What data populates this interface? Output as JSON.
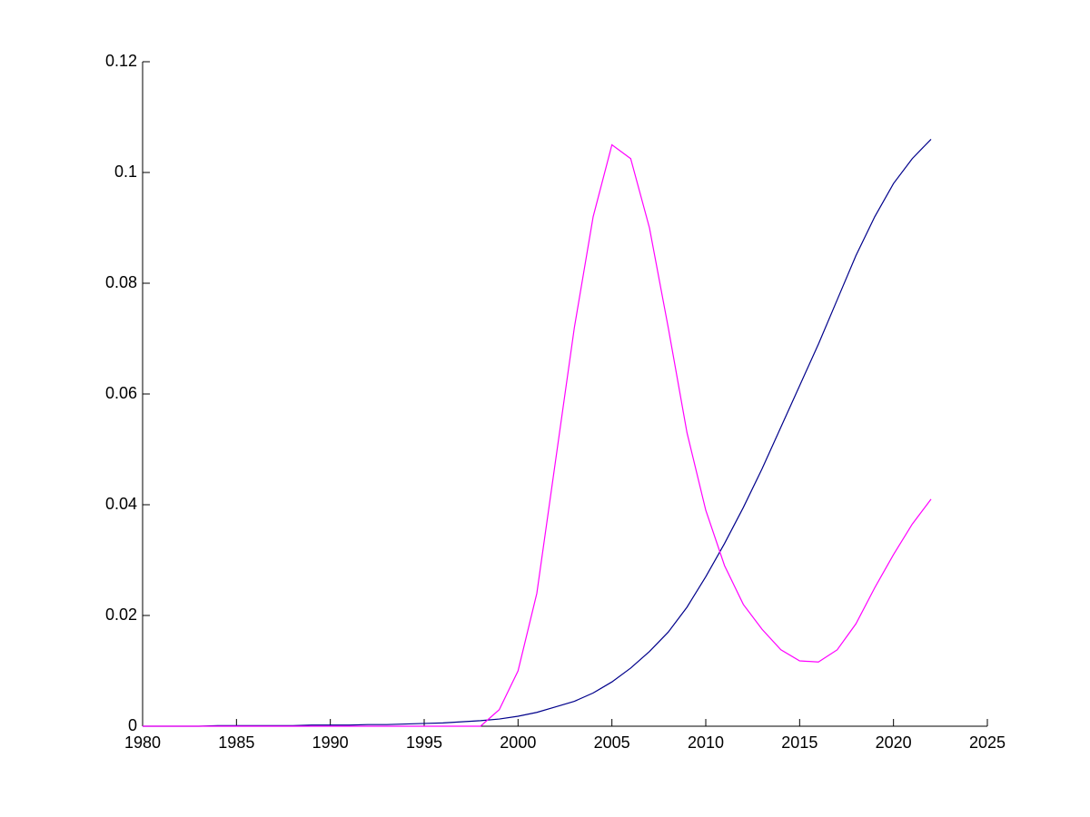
{
  "chart_data": {
    "type": "line",
    "x": [
      1980,
      1981,
      1982,
      1983,
      1984,
      1985,
      1986,
      1987,
      1988,
      1989,
      1990,
      1991,
      1992,
      1993,
      1994,
      1995,
      1996,
      1997,
      1998,
      1999,
      2000,
      2001,
      2002,
      2003,
      2004,
      2005,
      2006,
      2007,
      2008,
      2009,
      2010,
      2011,
      2012,
      2013,
      2014,
      2015,
      2016,
      2017,
      2018,
      2019,
      2020,
      2021,
      2022
    ],
    "series": [
      {
        "color": "#00008b",
        "values": [
          0,
          0,
          0,
          0,
          0.0001,
          0.0001,
          0.0001,
          0.0001,
          0.0001,
          0.0002,
          0.0002,
          0.0002,
          0.0003,
          0.0003,
          0.0004,
          0.0005,
          0.0006,
          0.0008,
          0.001,
          0.0013,
          0.0018,
          0.0025,
          0.0035,
          0.0045,
          0.006,
          0.008,
          0.0105,
          0.0135,
          0.017,
          0.0215,
          0.027,
          0.033,
          0.0395,
          0.0465,
          0.054,
          0.0615,
          0.069,
          0.077,
          0.085,
          0.092,
          0.098,
          0.1025,
          0.106
        ]
      },
      {
        "color": "#ff00ff",
        "values": [
          0,
          0,
          0,
          0,
          0,
          0,
          0,
          0,
          0,
          0,
          0,
          0,
          0,
          0,
          0,
          0,
          0,
          0,
          0,
          0.003,
          0.01,
          0.024,
          0.048,
          0.072,
          0.092,
          0.105,
          0.1025,
          0.09,
          0.072,
          0.053,
          0.039,
          0.029,
          0.022,
          0.0175,
          0.0138,
          0.0118,
          0.0116,
          0.0138,
          0.0185,
          0.025,
          0.031,
          0.0365,
          0.041
        ]
      }
    ],
    "xlim": [
      1980,
      2025
    ],
    "xticks": [
      1980,
      1985,
      1990,
      1995,
      2000,
      2005,
      2010,
      2015,
      2020,
      2025
    ],
    "ylim": [
      0,
      0.12
    ],
    "yticks": [
      0,
      0.02,
      0.04,
      0.06,
      0.08,
      0.1,
      0.12
    ]
  }
}
